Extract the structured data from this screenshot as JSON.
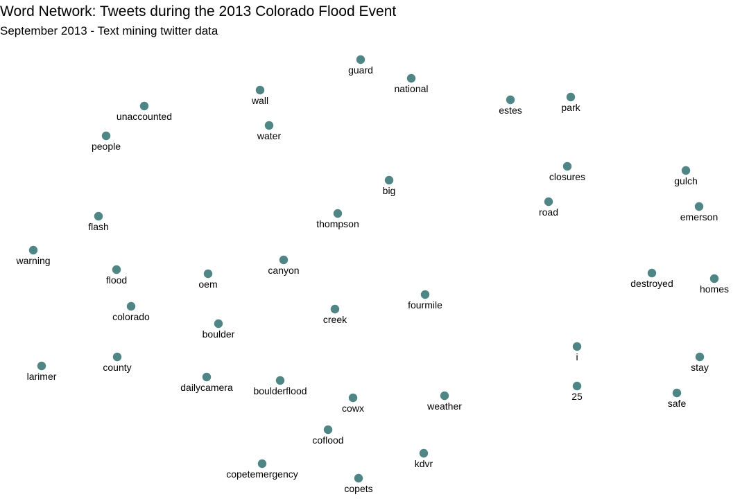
{
  "header": {
    "title": "Word Network: Tweets during the 2013 Colorado Flood Event",
    "subtitle": "September 2013 - Text mining twitter data"
  },
  "colors": {
    "node": "#4f8584",
    "label": "#000000",
    "background": "#ffffff"
  },
  "chart_data": {
    "type": "network",
    "nodes": [
      {
        "label": "guard"
      },
      {
        "label": "national"
      },
      {
        "label": "wall"
      },
      {
        "label": "estes"
      },
      {
        "label": "park"
      },
      {
        "label": "unaccounted"
      },
      {
        "label": "water"
      },
      {
        "label": "people"
      },
      {
        "label": "closures"
      },
      {
        "label": "gulch"
      },
      {
        "label": "big"
      },
      {
        "label": "road"
      },
      {
        "label": "emerson"
      },
      {
        "label": "flash"
      },
      {
        "label": "thompson"
      },
      {
        "label": "warning"
      },
      {
        "label": "canyon"
      },
      {
        "label": "flood"
      },
      {
        "label": "oem"
      },
      {
        "label": "destroyed"
      },
      {
        "label": "homes"
      },
      {
        "label": "fourmile"
      },
      {
        "label": "colorado"
      },
      {
        "label": "creek"
      },
      {
        "label": "boulder"
      },
      {
        "label": "i"
      },
      {
        "label": "larimer"
      },
      {
        "label": "county"
      },
      {
        "label": "stay"
      },
      {
        "label": "dailycamera"
      },
      {
        "label": "boulderflood"
      },
      {
        "label": "25"
      },
      {
        "label": "cowx"
      },
      {
        "label": "weather"
      },
      {
        "label": "safe"
      },
      {
        "label": "coflood"
      },
      {
        "label": "kdvr"
      },
      {
        "label": "copetemergency"
      },
      {
        "label": "copets"
      }
    ]
  }
}
